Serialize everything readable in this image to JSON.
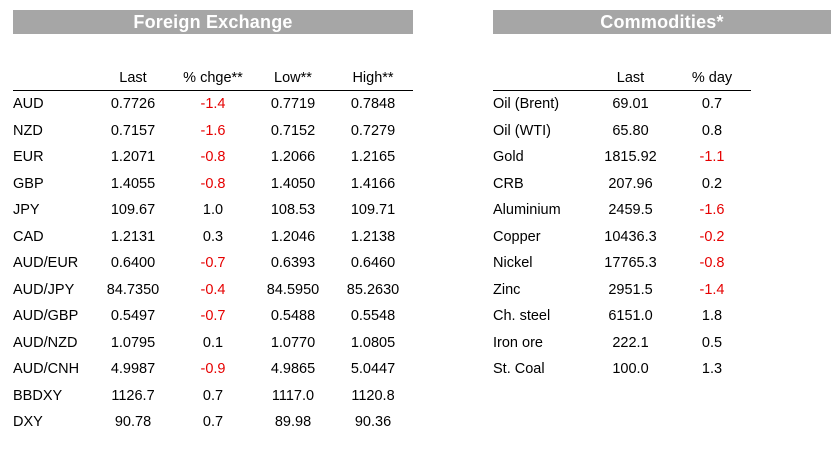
{
  "fx": {
    "title": "Foreign Exchange",
    "headers": [
      "",
      "Last",
      "% chge**",
      "Low**",
      "High**"
    ],
    "rows": [
      {
        "name": "AUD",
        "last": "0.7726",
        "chg": "-1.4",
        "low": "0.7719",
        "high": "0.7848"
      },
      {
        "name": "NZD",
        "last": "0.7157",
        "chg": "-1.6",
        "low": "0.7152",
        "high": "0.7279"
      },
      {
        "name": "EUR",
        "last": "1.2071",
        "chg": "-0.8",
        "low": "1.2066",
        "high": "1.2165"
      },
      {
        "name": "GBP",
        "last": "1.4055",
        "chg": "-0.8",
        "low": "1.4050",
        "high": "1.4166"
      },
      {
        "name": "JPY",
        "last": "109.67",
        "chg": "1.0",
        "low": "108.53",
        "high": "109.71"
      },
      {
        "name": "CAD",
        "last": "1.2131",
        "chg": "0.3",
        "low": "1.2046",
        "high": "1.2138"
      },
      {
        "name": "AUD/EUR",
        "last": "0.6400",
        "chg": "-0.7",
        "low": "0.6393",
        "high": "0.6460"
      },
      {
        "name": "AUD/JPY",
        "last": "84.7350",
        "chg": "-0.4",
        "low": "84.5950",
        "high": "85.2630"
      },
      {
        "name": "AUD/GBP",
        "last": "0.5497",
        "chg": "-0.7",
        "low": "0.5488",
        "high": "0.5548"
      },
      {
        "name": "AUD/NZD",
        "last": "1.0795",
        "chg": "0.1",
        "low": "1.0770",
        "high": "1.0805"
      },
      {
        "name": "AUD/CNH",
        "last": "4.9987",
        "chg": "-0.9",
        "low": "4.9865",
        "high": "5.0447"
      },
      {
        "name": "BBDXY",
        "last": "1126.7",
        "chg": "0.7",
        "low": "1117.0",
        "high": "1120.8"
      },
      {
        "name": "DXY",
        "last": "90.78",
        "chg": "0.7",
        "low": "89.98",
        "high": "90.36"
      }
    ]
  },
  "commodities": {
    "title": "Commodities*",
    "headers": [
      "",
      "Last",
      "% day"
    ],
    "rows": [
      {
        "name": "Oil (Brent)",
        "last": "69.01",
        "day": "0.7"
      },
      {
        "name": "Oil (WTI)",
        "last": "65.80",
        "day": "0.8"
      },
      {
        "name": "Gold",
        "last": "1815.92",
        "day": "-1.1"
      },
      {
        "name": "CRB",
        "last": "207.96",
        "day": "0.2"
      },
      {
        "name": "Aluminium",
        "last": "2459.5",
        "day": "-1.6"
      },
      {
        "name": "Copper",
        "last": "10436.3",
        "day": "-0.2"
      },
      {
        "name": "Nickel",
        "last": "17765.3",
        "day": "-0.8"
      },
      {
        "name": "Zinc",
        "last": "2951.5",
        "day": "-1.4"
      },
      {
        "name": "Ch. steel",
        "last": "6151.0",
        "day": "1.8"
      },
      {
        "name": "Iron ore",
        "last": "222.1",
        "day": "0.5"
      },
      {
        "name": "St. Coal",
        "last": "100.0",
        "day": "1.3"
      }
    ]
  },
  "colors": {
    "negative": "#e60000",
    "header_bar": "#a6a6a6"
  }
}
